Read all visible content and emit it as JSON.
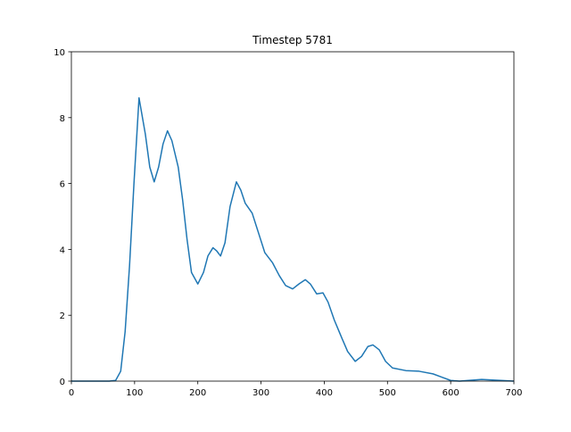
{
  "chart_data": {
    "type": "line",
    "title": "Timestep 5781",
    "x": [
      0,
      30,
      60,
      70,
      78,
      85,
      92,
      99,
      107,
      117,
      124,
      131,
      138,
      145,
      152,
      159,
      169,
      176,
      183,
      190,
      200,
      209,
      216,
      224,
      230,
      236,
      243,
      251,
      261,
      268,
      275,
      286,
      296,
      306,
      318,
      329,
      339,
      350,
      360,
      370,
      378,
      388,
      398,
      406,
      416,
      428,
      437,
      449,
      459,
      469,
      477,
      487,
      497,
      508,
      529,
      550,
      572,
      586,
      600,
      614,
      649,
      700
    ],
    "series": [
      {
        "name": "Timestep 5781",
        "color": "#1f77b4",
        "values": [
          0,
          0,
          0,
          0.02,
          0.3,
          1.5,
          3.5,
          6,
          8.6,
          7.5,
          6.5,
          6.05,
          6.5,
          7.2,
          7.6,
          7.3,
          6.5,
          5.5,
          4.3,
          3.3,
          2.95,
          3.3,
          3.8,
          4.05,
          3.95,
          3.8,
          4.2,
          5.3,
          6.05,
          5.8,
          5.4,
          5.1,
          4.5,
          3.9,
          3.6,
          3.2,
          2.9,
          2.8,
          2.95,
          3.08,
          2.95,
          2.65,
          2.68,
          2.4,
          1.85,
          1.3,
          0.9,
          0.6,
          0.75,
          1.05,
          1.1,
          0.95,
          0.6,
          0.4,
          0.32,
          0.3,
          0.22,
          0.12,
          0.02,
          0,
          0.05,
          0
        ]
      }
    ],
    "xlim": [
      0,
      700
    ],
    "xticks": [
      0,
      100,
      200,
      300,
      400,
      500,
      600,
      700
    ],
    "ylim": [
      0,
      10
    ],
    "yticks": [
      0,
      2,
      4,
      6,
      8,
      10
    ]
  }
}
